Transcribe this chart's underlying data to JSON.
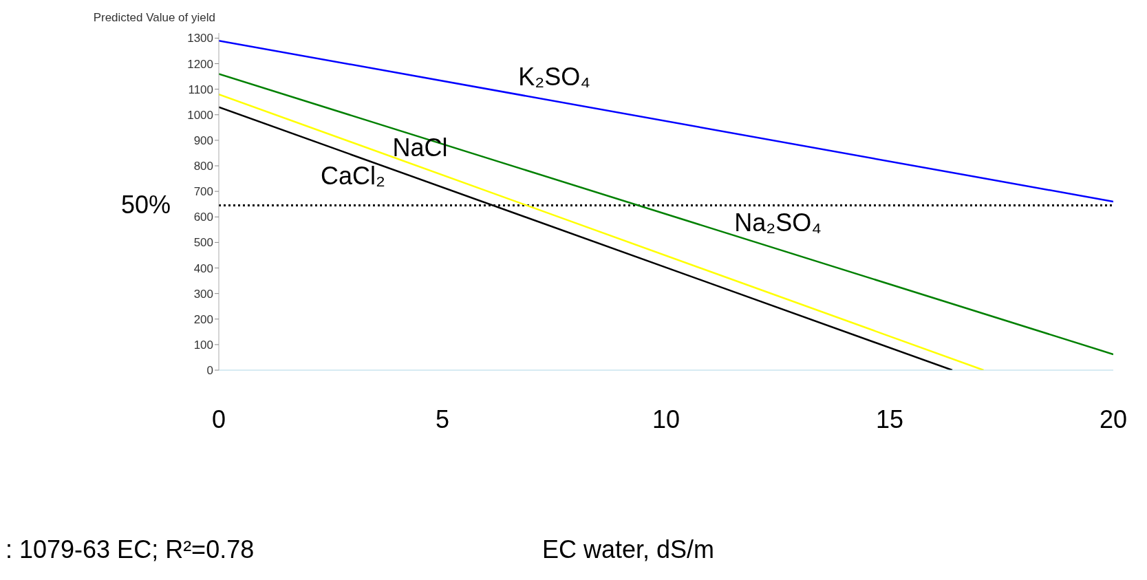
{
  "chart_data": {
    "type": "line",
    "ylabel": "Predicted Value of yield",
    "xlabel": "EC water, dS/m",
    "annotations": [
      ": 1079-63 EC; R²=0.78",
      "50%"
    ],
    "xlim": [
      0,
      20
    ],
    "xticks": [
      0,
      5,
      10,
      15,
      20
    ],
    "ylim": [
      0,
      1320
    ],
    "yticks": [
      0,
      100,
      200,
      300,
      400,
      500,
      600,
      700,
      800,
      900,
      1000,
      1100,
      1200,
      1300
    ],
    "grid": false,
    "marker": "none",
    "line_style": "solid",
    "ref_lines": [
      {
        "axis": "y",
        "value": 645,
        "color": "#000000",
        "line_style": "dotted"
      }
    ],
    "series": [
      {
        "name": "K₂SO₄",
        "color": "#0000ff",
        "x": [
          0,
          20
        ],
        "values": [
          1290,
          660
        ]
      },
      {
        "name": "Na₂SO₄",
        "color": "#008000",
        "x": [
          0,
          20
        ],
        "values": [
          1160,
          62
        ]
      },
      {
        "name": "NaCl",
        "color": "#ffff00",
        "x": [
          0,
          17.1
        ],
        "values": [
          1080,
          0
        ]
      },
      {
        "name": "CaCl₂",
        "color": "#000000",
        "x": [
          0,
          16.4
        ],
        "values": [
          1030,
          0
        ]
      }
    ]
  }
}
